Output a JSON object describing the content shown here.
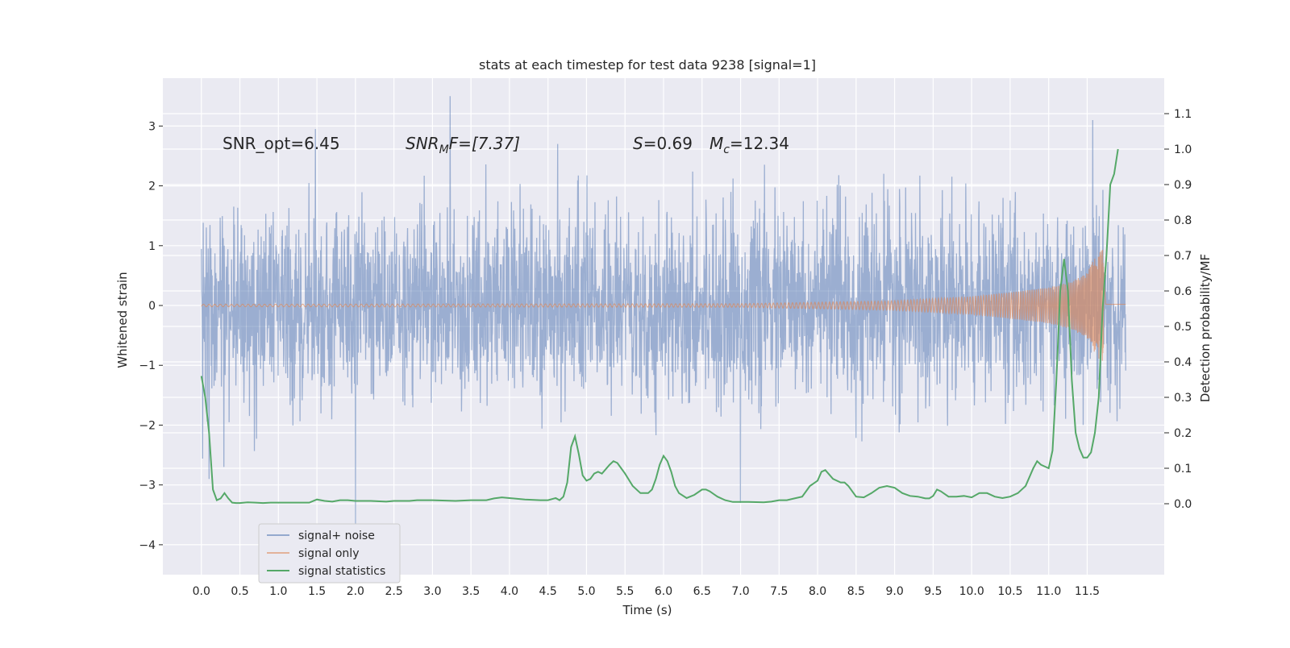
{
  "chart_data": {
    "type": "line",
    "title": "stats at each timestep for test data 9238 [signal=1]",
    "xlabel": "Time (s)",
    "ylabel": "Whitened strain",
    "ylabel_right": "Detection probability/MF",
    "xlim": [
      -0.5,
      12.5
    ],
    "ylim": [
      -4.5,
      3.8
    ],
    "ylim_right": [
      -0.2,
      1.2
    ],
    "x_ticks": [
      0.0,
      0.5,
      1.0,
      1.5,
      2.0,
      2.5,
      3.0,
      3.5,
      4.0,
      4.5,
      5.0,
      5.5,
      6.0,
      6.5,
      7.0,
      7.5,
      8.0,
      8.5,
      9.0,
      9.5,
      10.0,
      10.5,
      11.0,
      11.5
    ],
    "x_tick_labels": [
      "0.0",
      "0.5",
      "1.0",
      "1.5",
      "2.0",
      "2.5",
      "3.0",
      "3.5",
      "4.0",
      "4.5",
      "5.0",
      "5.5",
      "6.0",
      "6.5",
      "7.0",
      "7.5",
      "8.0",
      "8.5",
      "9.0",
      "9.5",
      "10.0",
      "10.5",
      "11.0",
      "11.5"
    ],
    "y_ticks": [
      -4,
      -3,
      -2,
      -1,
      0,
      1,
      2,
      3
    ],
    "y_tick_labels": [
      "−4",
      "−3",
      "−2",
      "−1",
      "0",
      "1",
      "2",
      "3"
    ],
    "y_ticks_right": [
      0.0,
      0.1,
      0.2,
      0.3,
      0.4,
      0.5,
      0.6,
      0.7,
      0.8,
      0.9,
      1.0,
      1.1
    ],
    "y_tick_labels_right": [
      "0.0",
      "0.1",
      "0.2",
      "0.3",
      "0.4",
      "0.5",
      "0.6",
      "0.7",
      "0.8",
      "0.9",
      "1.0",
      "1.1"
    ],
    "annotations": {
      "snr_opt": "SNR_opt=6.45",
      "snr_mf_label": "SNR",
      "snr_mf_sub": "M",
      "snr_mf_value": "F=[7.37]",
      "s_label": "S",
      "s_value": "=0.69",
      "mc_label": "M",
      "mc_sub": "c",
      "mc_value": "=12.34"
    },
    "legend_position": "lower-left",
    "grid": true,
    "series": [
      {
        "name": "signal+ noise",
        "axis": "left",
        "color": "#4c72b0",
        "x_range": [
          0.0,
          12.0
        ],
        "typical_range": [
          -1.5,
          1.5
        ],
        "extremes": [
          {
            "x": 3.23,
            "y": 3.5
          },
          {
            "x": 11.57,
            "y": 3.1
          },
          {
            "x": 1.48,
            "y": 2.95
          },
          {
            "x": 2.0,
            "y": -3.8
          },
          {
            "x": 7.0,
            "y": -3.3
          },
          {
            "x": 0.1,
            "y": -2.9
          }
        ]
      },
      {
        "name": "signal only",
        "axis": "left",
        "color": "#dd8452",
        "envelope": [
          {
            "x": 0.0,
            "a": 0.02
          },
          {
            "x": 7.0,
            "a": 0.03
          },
          {
            "x": 9.0,
            "a": 0.08
          },
          {
            "x": 10.0,
            "a": 0.15
          },
          {
            "x": 10.5,
            "a": 0.22
          },
          {
            "x": 11.0,
            "a": 0.3
          },
          {
            "x": 11.3,
            "a": 0.4
          },
          {
            "x": 11.5,
            "a": 0.55
          },
          {
            "x": 11.62,
            "a": 0.85
          },
          {
            "x": 11.7,
            "a": 0.95
          },
          {
            "x": 11.74,
            "a": 0.02
          },
          {
            "x": 12.0,
            "a": 0.02
          }
        ]
      },
      {
        "name": "signal statistics",
        "axis": "right",
        "color": "#55a868",
        "x": [
          0.0,
          0.05,
          0.1,
          0.15,
          0.2,
          0.25,
          0.3,
          0.35,
          0.4,
          0.45,
          0.5,
          0.6,
          0.7,
          0.8,
          0.9,
          1.0,
          1.2,
          1.4,
          1.5,
          1.6,
          1.7,
          1.8,
          1.9,
          2.0,
          2.2,
          2.4,
          2.5,
          2.7,
          2.8,
          3.0,
          3.3,
          3.5,
          3.7,
          3.8,
          3.9,
          4.0,
          4.2,
          4.4,
          4.5,
          4.6,
          4.65,
          4.7,
          4.75,
          4.8,
          4.85,
          4.9,
          4.95,
          5.0,
          5.05,
          5.1,
          5.15,
          5.2,
          5.3,
          5.35,
          5.4,
          5.45,
          5.5,
          5.6,
          5.7,
          5.8,
          5.85,
          5.9,
          5.95,
          6.0,
          6.05,
          6.1,
          6.15,
          6.2,
          6.3,
          6.4,
          6.5,
          6.55,
          6.6,
          6.7,
          6.8,
          6.9,
          7.0,
          7.1,
          7.3,
          7.4,
          7.5,
          7.6,
          7.7,
          7.8,
          7.9,
          8.0,
          8.05,
          8.1,
          8.2,
          8.3,
          8.35,
          8.4,
          8.5,
          8.6,
          8.7,
          8.8,
          8.9,
          9.0,
          9.1,
          9.2,
          9.3,
          9.4,
          9.45,
          9.5,
          9.55,
          9.6,
          9.7,
          9.8,
          9.9,
          10.0,
          10.1,
          10.2,
          10.3,
          10.4,
          10.5,
          10.6,
          10.7,
          10.8,
          10.85,
          10.9,
          11.0,
          11.05,
          11.1,
          11.15,
          11.2,
          11.25,
          11.3,
          11.35,
          11.4,
          11.45,
          11.5,
          11.55,
          11.6,
          11.65,
          11.7,
          11.75,
          11.8,
          11.85,
          11.9
        ],
        "values": [
          0.36,
          0.3,
          0.2,
          0.04,
          0.01,
          0.015,
          0.03,
          0.015,
          0.003,
          0.002,
          0.002,
          0.004,
          0.003,
          0.002,
          0.003,
          0.003,
          0.003,
          0.003,
          0.012,
          0.008,
          0.006,
          0.01,
          0.01,
          0.008,
          0.008,
          0.006,
          0.008,
          0.008,
          0.01,
          0.01,
          0.008,
          0.01,
          0.01,
          0.015,
          0.018,
          0.016,
          0.012,
          0.01,
          0.01,
          0.016,
          0.01,
          0.02,
          0.06,
          0.16,
          0.19,
          0.14,
          0.08,
          0.065,
          0.07,
          0.085,
          0.09,
          0.085,
          0.11,
          0.12,
          0.115,
          0.1,
          0.085,
          0.05,
          0.03,
          0.03,
          0.04,
          0.07,
          0.11,
          0.135,
          0.12,
          0.09,
          0.05,
          0.03,
          0.016,
          0.025,
          0.04,
          0.04,
          0.035,
          0.02,
          0.01,
          0.005,
          0.005,
          0.005,
          0.004,
          0.006,
          0.01,
          0.01,
          0.015,
          0.02,
          0.05,
          0.065,
          0.09,
          0.095,
          0.07,
          0.06,
          0.06,
          0.05,
          0.02,
          0.018,
          0.03,
          0.045,
          0.05,
          0.045,
          0.03,
          0.022,
          0.02,
          0.015,
          0.015,
          0.022,
          0.04,
          0.035,
          0.02,
          0.02,
          0.022,
          0.018,
          0.03,
          0.03,
          0.02,
          0.016,
          0.02,
          0.03,
          0.05,
          0.1,
          0.12,
          0.11,
          0.1,
          0.15,
          0.35,
          0.6,
          0.69,
          0.6,
          0.35,
          0.2,
          0.155,
          0.13,
          0.13,
          0.145,
          0.2,
          0.3,
          0.55,
          0.7,
          0.9,
          0.93,
          1.0
        ]
      }
    ]
  }
}
